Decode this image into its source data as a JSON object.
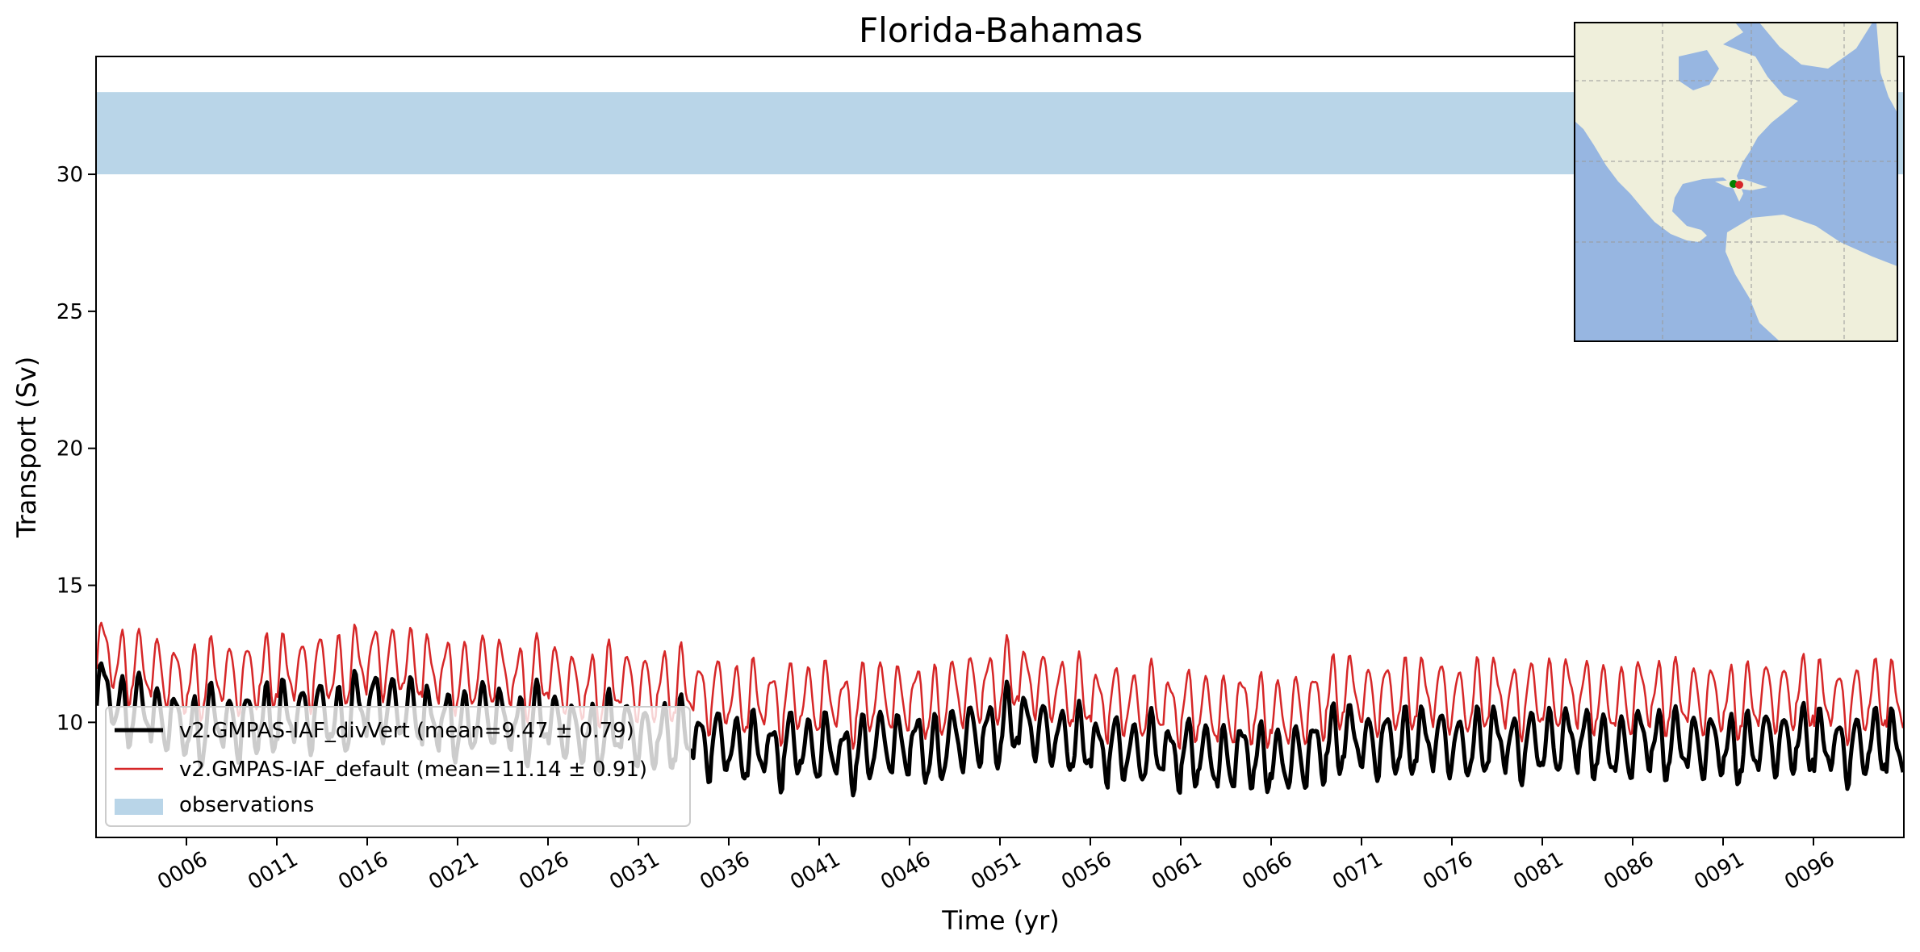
{
  "chart_data": {
    "type": "line",
    "title": "Florida-Bahamas",
    "xlabel": "Time (yr)",
    "ylabel": "Transport (Sv)",
    "xlim": [
      1,
      101
    ],
    "ylim": [
      5.8,
      34.3
    ],
    "x_ticks": [
      "0006",
      "0011",
      "0016",
      "0021",
      "0026",
      "0031",
      "0036",
      "0041",
      "0046",
      "0051",
      "0056",
      "0061",
      "0066",
      "0071",
      "0076",
      "0081",
      "0086",
      "0091",
      "0096"
    ],
    "y_ticks": [
      "10",
      "15",
      "20",
      "25",
      "30"
    ],
    "grid": false,
    "legend_position": "lower-left",
    "observations": {
      "label": "observations",
      "range": [
        30,
        33
      ],
      "color": "#b9d5e8"
    },
    "series": [
      {
        "name": "v2.GMPAS-IAF_divVert (mean=9.47 ± 0.79)",
        "color": "#000000",
        "mean": 9.47,
        "std": 0.79,
        "annual_values": [
          11.2,
          10.4,
          10.6,
          10.1,
          10.0,
          9.6,
          10.2,
          9.8,
          10.0,
          10.1,
          10.3,
          10.2,
          10.4,
          10.0,
          10.6,
          10.7,
          10.5,
          10.4,
          10.1,
          10.0,
          9.9,
          10.3,
          10.1,
          9.8,
          10.2,
          9.9,
          9.6,
          9.5,
          9.8,
          9.7,
          9.4,
          9.5,
          9.6,
          9.2,
          9.3,
          9.0,
          9.1,
          8.9,
          9.2,
          9.0,
          9.1,
          8.8,
          9.0,
          9.3,
          9.1,
          9.2,
          8.9,
          9.4,
          9.5,
          9.6,
          10.0,
          9.9,
          9.6,
          9.4,
          9.3,
          9.0,
          9.1,
          8.9,
          9.1,
          8.8,
          8.9,
          8.8,
          8.6,
          8.9,
          8.7,
          8.6,
          8.7,
          9.0,
          9.3,
          9.5,
          9.1,
          9.3,
          9.2,
          9.4,
          9.3,
          9.1,
          9.2,
          9.4,
          9.1,
          9.3,
          9.2,
          9.4,
          9.3,
          9.1,
          9.0,
          9.4,
          9.2,
          9.3,
          9.1,
          9.2,
          9.0,
          9.1,
          9.3,
          9.2,
          9.4,
          9.2,
          9.0,
          9.1,
          9.3,
          9.2
        ]
      },
      {
        "name": "v2.GMPAS-IAF_default (mean=11.14 ± 0.91)",
        "color": "#d62728",
        "mean": 11.14,
        "std": 0.91,
        "annual_values": [
          12.6,
          12.0,
          12.1,
          11.8,
          11.6,
          11.4,
          11.8,
          11.6,
          11.7,
          11.8,
          11.9,
          11.8,
          12.0,
          11.8,
          12.2,
          12.3,
          12.2,
          12.1,
          11.9,
          11.8,
          11.6,
          11.9,
          11.8,
          11.5,
          11.8,
          11.6,
          11.3,
          11.2,
          11.5,
          11.4,
          11.2,
          11.3,
          11.4,
          11.0,
          11.1,
          10.8,
          10.9,
          10.7,
          10.9,
          10.8,
          10.9,
          10.6,
          10.8,
          11.0,
          10.8,
          10.9,
          10.6,
          11.1,
          11.2,
          11.3,
          11.6,
          11.5,
          11.3,
          11.1,
          11.0,
          10.7,
          10.8,
          10.6,
          10.8,
          10.5,
          10.6,
          10.5,
          10.3,
          10.6,
          10.4,
          10.3,
          10.4,
          10.7,
          11.0,
          11.2,
          10.8,
          11.0,
          10.9,
          11.1,
          11.0,
          10.8,
          10.9,
          11.1,
          10.8,
          11.0,
          10.9,
          11.1,
          11.0,
          10.8,
          10.7,
          11.1,
          10.9,
          11.0,
          10.8,
          10.9,
          10.7,
          10.8,
          11.0,
          10.9,
          11.1,
          10.9,
          10.7,
          10.8,
          11.0,
          10.9
        ]
      }
    ],
    "inset_map": {
      "land_color": "#efefdb",
      "ocean_color": "#97b6e1",
      "markers": [
        {
          "color": "#008000"
        },
        {
          "color": "#d62728"
        }
      ]
    }
  }
}
